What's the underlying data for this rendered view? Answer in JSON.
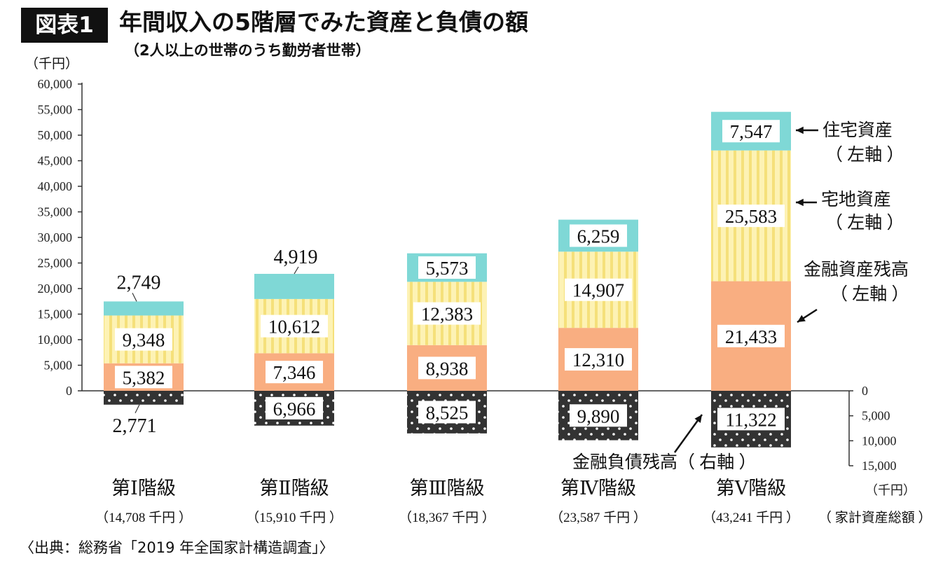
{
  "header": {
    "badge": "図表1",
    "title": "年間収入の5階層でみた資産と負債の額",
    "subtitle": "（2人以上の世帯のうち勤労者世帯）"
  },
  "left_axis_unit": "（千円）",
  "right_axis_unit": "（千円）",
  "total_suffix_label": "（ 家計資産総額 ）",
  "source": "〈出典：総務省「2019 年全国家計構造調査」〉",
  "colors": {
    "financial_assets": "#f9ae81",
    "land_assets": "#fdf2b4",
    "land_stripe": "#f5e07a",
    "housing_assets": "#7fd8d6",
    "liabilities": "#333333",
    "axis": "#333333"
  },
  "annotations": {
    "housing": [
      "住宅資産",
      "（ 左軸 ）"
    ],
    "land": [
      "宅地資産",
      "（ 左軸 ）"
    ],
    "financial": [
      "金融資産残高",
      "（ 左軸 ）"
    ],
    "liabilities": "金融負債残高（ 右軸 ）"
  },
  "chart_data": {
    "type": "bar",
    "stacked": true,
    "categories": [
      "第 I 階級",
      "第 II 階級",
      "第 III 階級",
      "第 IV 階級",
      "第 V 階級"
    ],
    "category_labels": [
      "第Ⅰ階級",
      "第Ⅱ階級",
      "第Ⅲ階級",
      "第Ⅳ階級",
      "第Ⅴ階級"
    ],
    "totals_label": [
      "（14,708 千円 ）",
      "（15,910 千円 ）",
      "（18,367 千円 ）",
      "（23,587 千円 ）",
      "（43,241 千円 ）"
    ],
    "series": [
      {
        "name": "金融資産残高",
        "axis": "left",
        "values": [
          5382,
          7346,
          8938,
          12310,
          21433
        ]
      },
      {
        "name": "宅地資産",
        "axis": "left",
        "values": [
          9348,
          10612,
          12383,
          14907,
          25583
        ]
      },
      {
        "name": "住宅資産",
        "axis": "left",
        "values": [
          2749,
          4919,
          5573,
          6259,
          7547
        ]
      },
      {
        "name": "金融負債残高",
        "axis": "right",
        "values": [
          2771,
          6966,
          8525,
          9890,
          11322
        ]
      }
    ],
    "left_axis": {
      "ylim": [
        0,
        60000
      ],
      "ticks": [
        "0",
        "5,000",
        "10,000",
        "15,000",
        "20,000",
        "25,000",
        "30,000",
        "35,000",
        "40,000",
        "45,000",
        "50,000",
        "55,000",
        "60,000"
      ]
    },
    "right_axis": {
      "ylim": [
        0,
        15000
      ],
      "inverted": true,
      "ticks": [
        "0",
        "5,000",
        "10,000",
        "15,000"
      ]
    },
    "grid": false
  }
}
